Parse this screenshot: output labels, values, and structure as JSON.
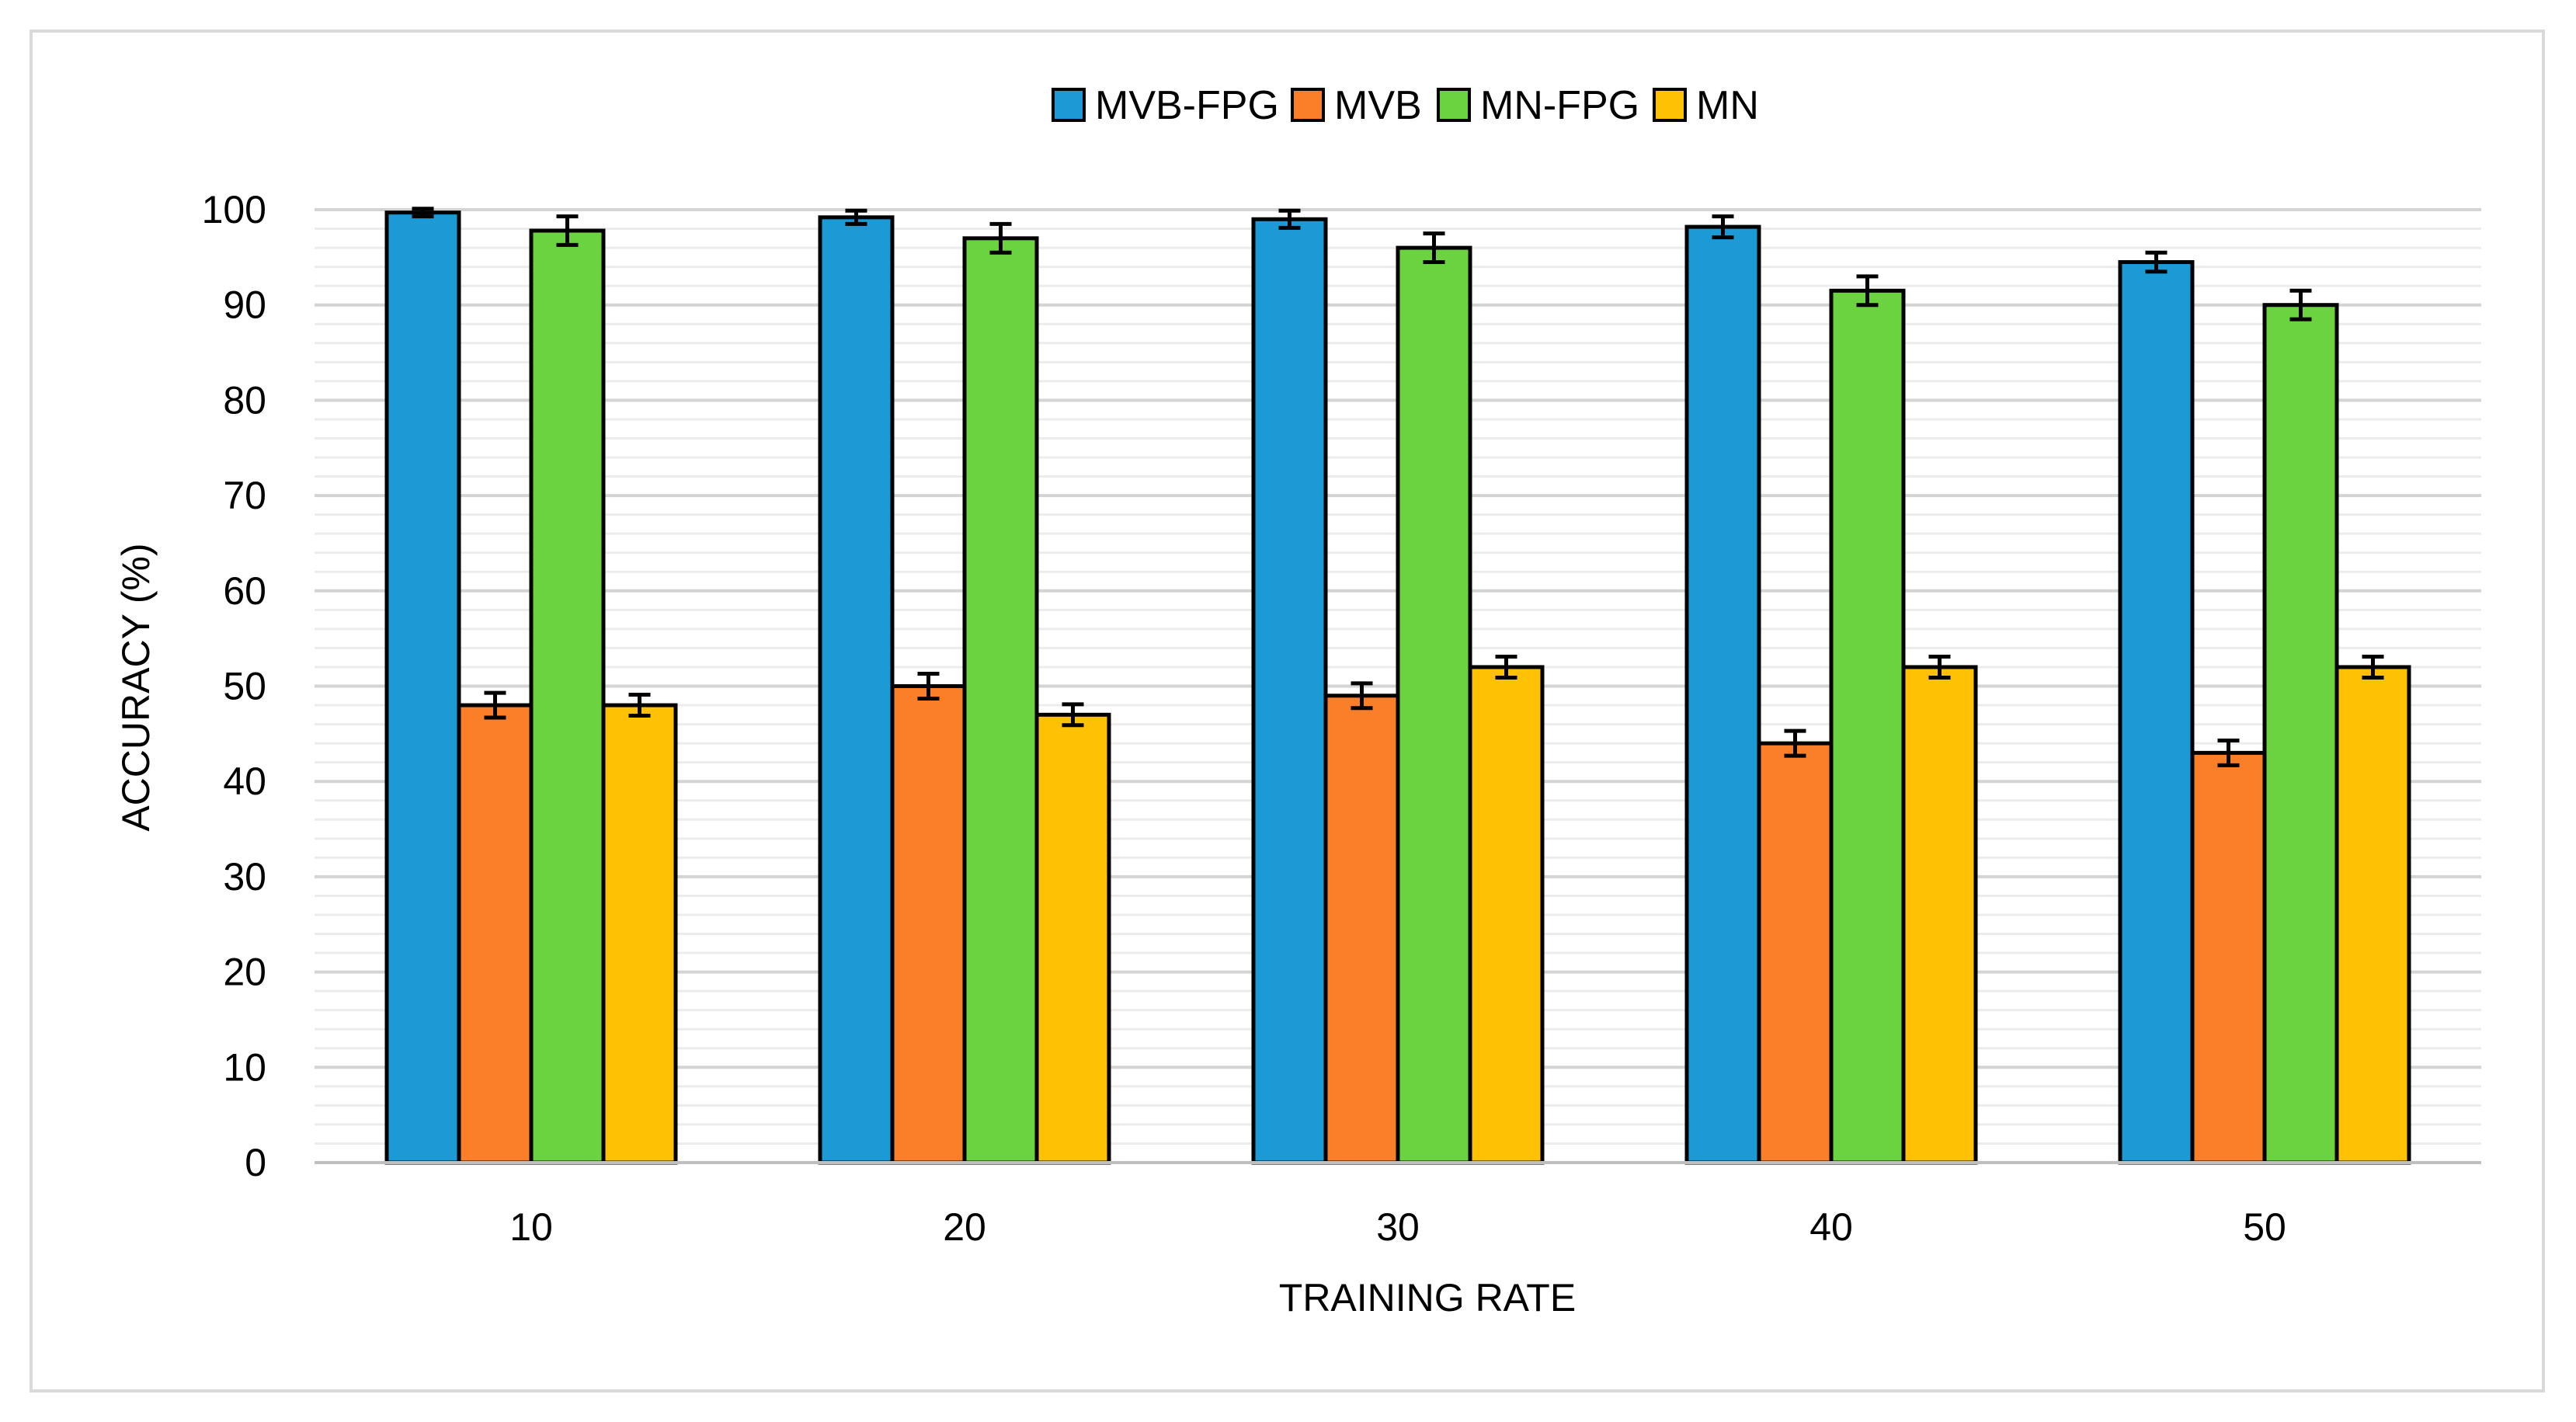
{
  "chart_data": {
    "type": "bar",
    "title": "",
    "xlabel": "TRAINING RATE",
    "ylabel": "ACCURACY (%)",
    "ylim": [
      0,
      100
    ],
    "yticks": [
      0,
      10,
      20,
      30,
      40,
      50,
      60,
      70,
      80,
      90,
      100
    ],
    "minor_grid_step": 2,
    "grid": true,
    "legend_position": "top-center",
    "categories": [
      "10",
      "20",
      "30",
      "40",
      "50"
    ],
    "series": [
      {
        "name": "MVB-FPG",
        "color": "#1b9ad6",
        "values": [
          99.7,
          99.2,
          99.0,
          98.2,
          94.5
        ],
        "errors": [
          0.4,
          0.7,
          0.9,
          1.1,
          1.0
        ]
      },
      {
        "name": "MVB",
        "color": "#fb7e29",
        "values": [
          48,
          50,
          49,
          44,
          43
        ],
        "errors": [
          1.3,
          1.3,
          1.3,
          1.3,
          1.3
        ]
      },
      {
        "name": "MN-FPG",
        "color": "#6ad33f",
        "values": [
          97.8,
          97.0,
          96.0,
          91.5,
          90.0
        ],
        "errors": [
          1.5,
          1.5,
          1.5,
          1.5,
          1.5
        ]
      },
      {
        "name": "MN",
        "color": "#ffc104",
        "values": [
          48,
          47,
          52,
          52,
          52
        ],
        "errors": [
          1.1,
          1.1,
          1.1,
          1.1,
          1.1
        ]
      }
    ]
  }
}
